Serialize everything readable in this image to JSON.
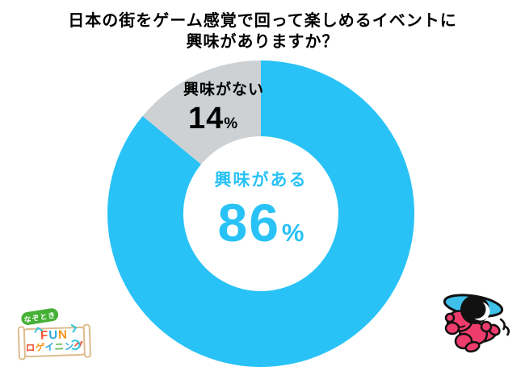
{
  "title": {
    "line1": "日本の街をゲーム感覚で回って楽しめるイベントに",
    "line2": "興味がありますか？"
  },
  "chart_data": {
    "type": "pie",
    "donut": true,
    "title": "日本の街をゲーム感覚で回って楽しめるイベントに興味がありますか？",
    "categories": [
      "興味がある",
      "興味がない"
    ],
    "values": [
      86,
      14
    ],
    "unit": "%",
    "colors": [
      "#29C2F6",
      "#CDD1D3"
    ],
    "start_angle": "top",
    "direction": "clockwise",
    "legend": "none",
    "labels": [
      {
        "text": "興味がある",
        "value": "86",
        "unit": "%",
        "placement": "center",
        "color": "#29C2F6"
      },
      {
        "text": "興味がない",
        "value": "14",
        "unit": "%",
        "placement": "on-slice",
        "color": "#000000"
      }
    ]
  },
  "logo": {
    "badge_label": "なぞとき",
    "fun_letters": [
      {
        "ch": "F",
        "color": "#F4502C"
      },
      {
        "ch": "U",
        "color": "#2FA8DF"
      },
      {
        "ch": "N",
        "color": "#F7941D"
      }
    ],
    "rogaining_letters": [
      {
        "ch": "ロ",
        "color": "#EF4123"
      },
      {
        "ch": "ゲ",
        "color": "#F7941D"
      },
      {
        "ch": "イ",
        "color": "#2FA8DF"
      },
      {
        "ch": "ニ",
        "color": "#45B035"
      },
      {
        "ch": "ン",
        "color": "#2FA8DF"
      },
      {
        "ch": "グ",
        "color": "#EF4123"
      }
    ]
  },
  "icons": {
    "mascot": "running-character-with-magnifying-glass-and-cap"
  }
}
